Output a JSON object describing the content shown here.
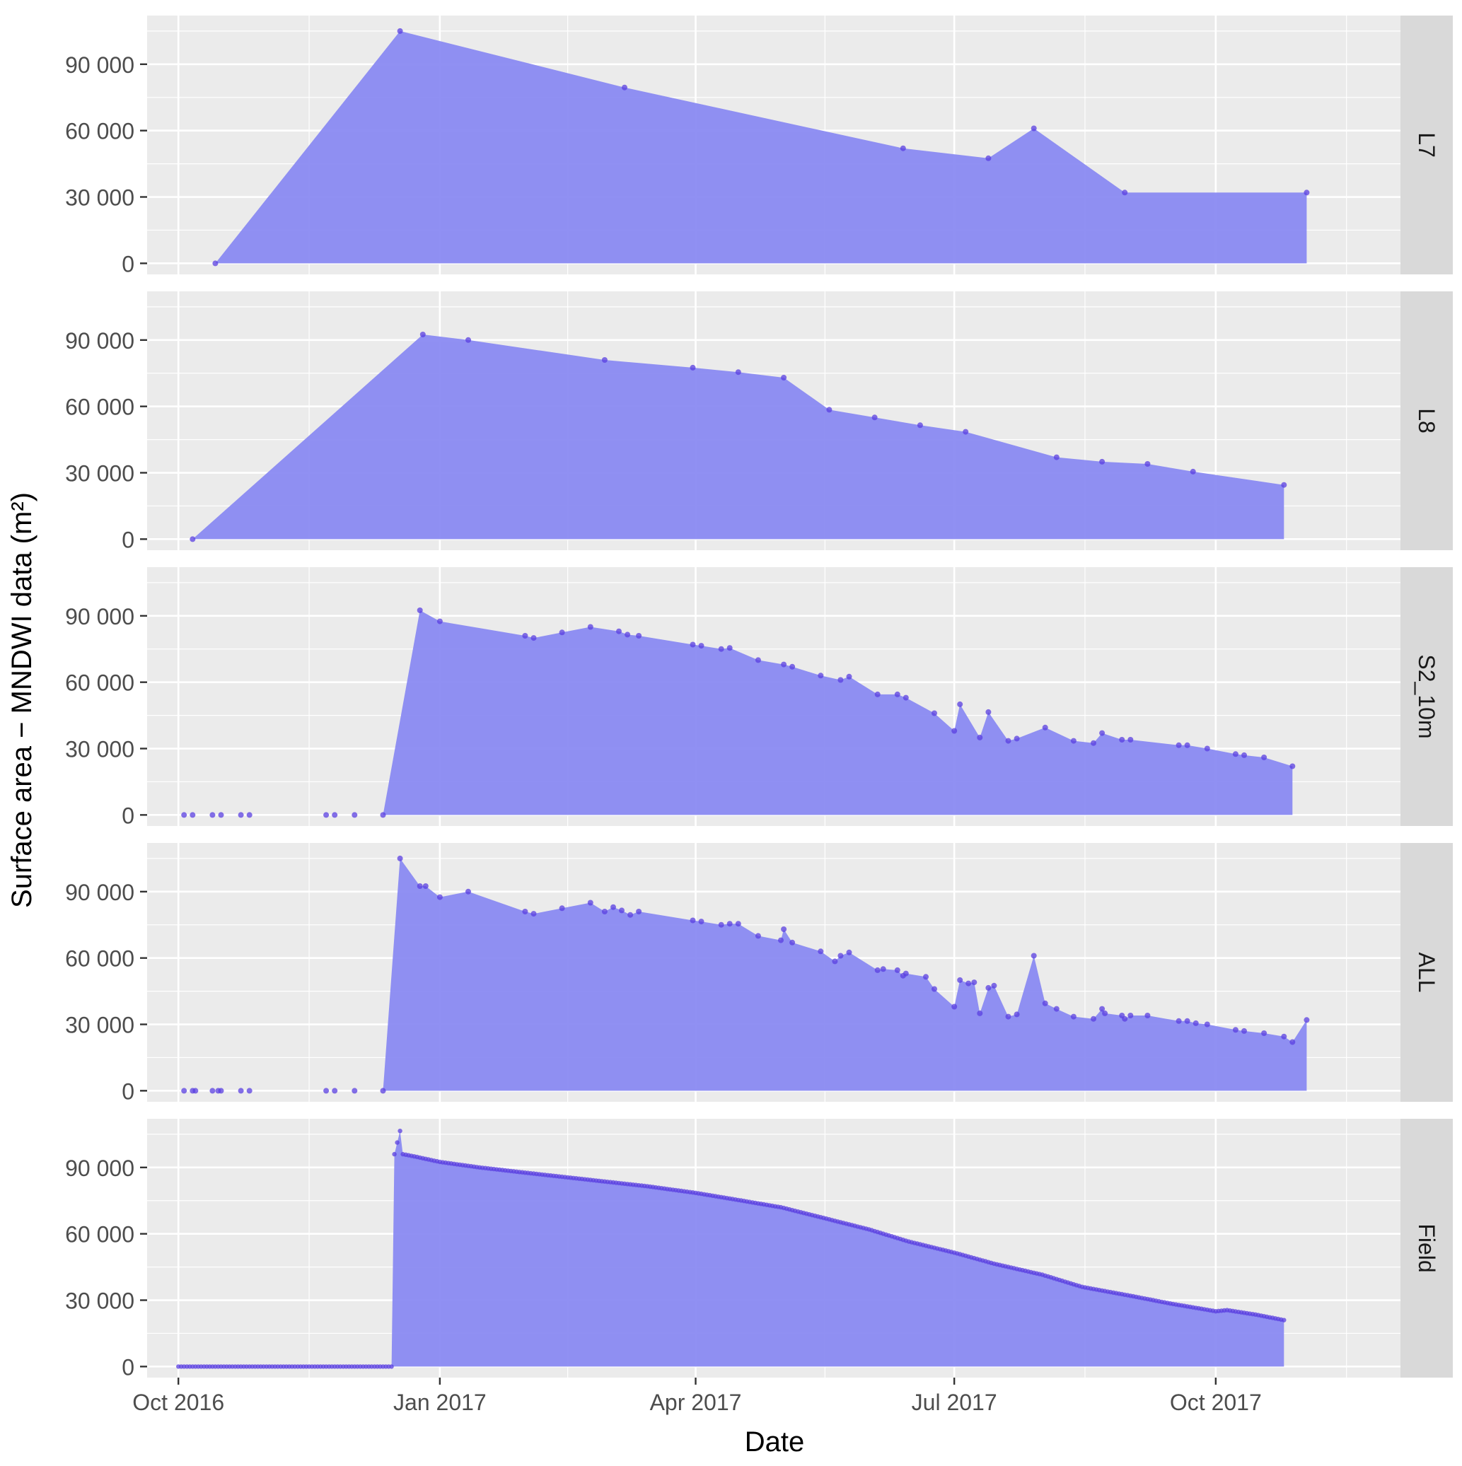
{
  "chart_data": {
    "type": "area",
    "xlabel": "Date",
    "ylabel": "Surface area − MNDWI data (m²)",
    "x_ticks": [
      "Oct 2016",
      "Jan 2017",
      "Apr 2017",
      "Jul 2017",
      "Oct 2017"
    ],
    "y_ticks": [
      "0",
      "30 000",
      "60 000",
      "90 000"
    ],
    "xlim": [
      "2016-09-20",
      "2017-12-05"
    ],
    "ylim": [
      -5000,
      112000
    ],
    "grid": true,
    "colors": {
      "fill": "#8a8af2",
      "point": "#5a3fe0",
      "panel_bg": "#ebebeb",
      "grid": "#ffffff",
      "strip_bg": "#d9d9d9"
    },
    "panels": [
      {
        "name": "L7",
        "points": [
          [
            "2016-10-14",
            0
          ],
          [
            "2016-12-18",
            105000
          ],
          [
            "2017-03-07",
            79500
          ],
          [
            "2017-06-13",
            52000
          ],
          [
            "2017-07-13",
            47500
          ],
          [
            "2017-07-29",
            61000
          ],
          [
            "2017-08-30",
            32000
          ],
          [
            "2017-11-02",
            32000
          ]
        ]
      },
      {
        "name": "L8",
        "points": [
          [
            "2016-10-06",
            0
          ],
          [
            "2016-12-26",
            92500
          ],
          [
            "2017-01-11",
            90000
          ],
          [
            "2017-02-28",
            81000
          ],
          [
            "2017-03-31",
            77500
          ],
          [
            "2017-04-16",
            75500
          ],
          [
            "2017-05-02",
            73000
          ],
          [
            "2017-05-18",
            58500
          ],
          [
            "2017-06-03",
            55000
          ],
          [
            "2017-06-19",
            51500
          ],
          [
            "2017-07-05",
            48500
          ],
          [
            "2017-08-06",
            37000
          ],
          [
            "2017-08-22",
            35000
          ],
          [
            "2017-09-07",
            34000
          ],
          [
            "2017-09-23",
            30500
          ],
          [
            "2017-10-25",
            24500
          ]
        ]
      },
      {
        "name": "S2_10m",
        "points": [
          [
            "2016-10-03",
            0
          ],
          [
            "2016-10-06",
            0
          ],
          [
            "2016-10-13",
            0
          ],
          [
            "2016-10-16",
            0
          ],
          [
            "2016-10-23",
            0
          ],
          [
            "2016-10-26",
            0
          ],
          [
            "2016-11-22",
            0
          ],
          [
            "2016-11-25",
            0
          ],
          [
            "2016-12-02",
            0
          ],
          [
            "2016-12-12",
            0
          ],
          [
            "2016-12-25",
            92500
          ],
          [
            "2017-01-01",
            87500
          ],
          [
            "2017-01-31",
            81000
          ],
          [
            "2017-02-03",
            80000
          ],
          [
            "2017-02-13",
            82500
          ],
          [
            "2017-02-23",
            85000
          ],
          [
            "2017-03-05",
            83000
          ],
          [
            "2017-03-08",
            81500
          ],
          [
            "2017-03-12",
            81000
          ],
          [
            "2017-03-31",
            77000
          ],
          [
            "2017-04-03",
            76500
          ],
          [
            "2017-04-10",
            75000
          ],
          [
            "2017-04-13",
            75500
          ],
          [
            "2017-04-23",
            70000
          ],
          [
            "2017-05-02",
            68000
          ],
          [
            "2017-05-05",
            67000
          ],
          [
            "2017-05-15",
            63000
          ],
          [
            "2017-05-22",
            61000
          ],
          [
            "2017-05-25",
            62500
          ],
          [
            "2017-06-04",
            54500
          ],
          [
            "2017-06-11",
            54500
          ],
          [
            "2017-06-14",
            53000
          ],
          [
            "2017-06-24",
            46000
          ],
          [
            "2017-07-01",
            38000
          ],
          [
            "2017-07-03",
            50000
          ],
          [
            "2017-07-10",
            35000
          ],
          [
            "2017-07-13",
            46500
          ],
          [
            "2017-07-20",
            33500
          ],
          [
            "2017-07-23",
            34500
          ],
          [
            "2017-08-02",
            39500
          ],
          [
            "2017-08-12",
            33500
          ],
          [
            "2017-08-19",
            32500
          ],
          [
            "2017-08-22",
            37000
          ],
          [
            "2017-08-29",
            34000
          ],
          [
            "2017-09-01",
            34000
          ],
          [
            "2017-09-18",
            31500
          ],
          [
            "2017-09-21",
            31500
          ],
          [
            "2017-09-28",
            30000
          ],
          [
            "2017-10-08",
            27500
          ],
          [
            "2017-10-11",
            27000
          ],
          [
            "2017-10-18",
            26000
          ],
          [
            "2017-10-28",
            22000
          ]
        ]
      },
      {
        "name": "ALL",
        "points": [
          [
            "2016-10-03",
            0
          ],
          [
            "2016-10-06",
            0
          ],
          [
            "2016-10-07",
            0
          ],
          [
            "2016-10-13",
            0
          ],
          [
            "2016-10-15",
            0
          ],
          [
            "2016-10-16",
            0
          ],
          [
            "2016-10-23",
            0
          ],
          [
            "2016-10-26",
            0
          ],
          [
            "2016-11-22",
            0
          ],
          [
            "2016-11-25",
            0
          ],
          [
            "2016-12-02",
            0
          ],
          [
            "2016-12-12",
            0
          ],
          [
            "2016-12-18",
            105000
          ],
          [
            "2016-12-25",
            92500
          ],
          [
            "2016-12-27",
            92500
          ],
          [
            "2017-01-01",
            87500
          ],
          [
            "2017-01-11",
            90000
          ],
          [
            "2017-01-31",
            81000
          ],
          [
            "2017-02-03",
            80000
          ],
          [
            "2017-02-13",
            82500
          ],
          [
            "2017-02-23",
            85000
          ],
          [
            "2017-02-28",
            81000
          ],
          [
            "2017-03-03",
            83000
          ],
          [
            "2017-03-06",
            81500
          ],
          [
            "2017-03-09",
            79500
          ],
          [
            "2017-03-12",
            81000
          ],
          [
            "2017-03-31",
            77000
          ],
          [
            "2017-04-03",
            76500
          ],
          [
            "2017-04-10",
            75000
          ],
          [
            "2017-04-13",
            75500
          ],
          [
            "2017-04-16",
            75500
          ],
          [
            "2017-04-23",
            70000
          ],
          [
            "2017-05-01",
            68000
          ],
          [
            "2017-05-02",
            73000
          ],
          [
            "2017-05-05",
            67000
          ],
          [
            "2017-05-15",
            63000
          ],
          [
            "2017-05-20",
            58500
          ],
          [
            "2017-05-22",
            61000
          ],
          [
            "2017-05-25",
            62500
          ],
          [
            "2017-06-04",
            54500
          ],
          [
            "2017-06-06",
            55000
          ],
          [
            "2017-06-11",
            54500
          ],
          [
            "2017-06-13",
            52000
          ],
          [
            "2017-06-14",
            53000
          ],
          [
            "2017-06-21",
            51500
          ],
          [
            "2017-06-24",
            46000
          ],
          [
            "2017-07-01",
            38000
          ],
          [
            "2017-07-03",
            50000
          ],
          [
            "2017-07-06",
            48500
          ],
          [
            "2017-07-08",
            49000
          ],
          [
            "2017-07-10",
            35000
          ],
          [
            "2017-07-13",
            46500
          ],
          [
            "2017-07-15",
            47500
          ],
          [
            "2017-07-20",
            33500
          ],
          [
            "2017-07-23",
            34500
          ],
          [
            "2017-07-29",
            61000
          ],
          [
            "2017-08-02",
            39500
          ],
          [
            "2017-08-06",
            37000
          ],
          [
            "2017-08-12",
            33500
          ],
          [
            "2017-08-19",
            32500
          ],
          [
            "2017-08-22",
            37000
          ],
          [
            "2017-08-23",
            35000
          ],
          [
            "2017-08-29",
            34000
          ],
          [
            "2017-08-30",
            32500
          ],
          [
            "2017-09-01",
            34000
          ],
          [
            "2017-09-07",
            34000
          ],
          [
            "2017-09-18",
            31500
          ],
          [
            "2017-09-21",
            31500
          ],
          [
            "2017-09-24",
            30500
          ],
          [
            "2017-09-28",
            30000
          ],
          [
            "2017-10-08",
            27500
          ],
          [
            "2017-10-11",
            27000
          ],
          [
            "2017-10-18",
            26000
          ],
          [
            "2017-10-25",
            24500
          ],
          [
            "2017-10-28",
            22000
          ],
          [
            "2017-11-02",
            32000
          ]
        ]
      },
      {
        "name": "Field",
        "points": [
          [
            "2016-10-01",
            0
          ],
          [
            "2016-12-15",
            0
          ],
          [
            "2016-12-16",
            96000
          ],
          [
            "2016-12-18",
            106500
          ],
          [
            "2016-12-19",
            96000
          ],
          [
            "2016-12-23",
            95000
          ],
          [
            "2017-01-01",
            92500
          ],
          [
            "2017-01-15",
            90000
          ],
          [
            "2017-02-01",
            87500
          ],
          [
            "2017-02-15",
            85500
          ],
          [
            "2017-03-01",
            83500
          ],
          [
            "2017-03-15",
            81500
          ],
          [
            "2017-04-01",
            78500
          ],
          [
            "2017-04-15",
            75500
          ],
          [
            "2017-05-01",
            72000
          ],
          [
            "2017-05-15",
            67500
          ],
          [
            "2017-06-01",
            62000
          ],
          [
            "2017-06-15",
            56500
          ],
          [
            "2017-07-01",
            51500
          ],
          [
            "2017-07-15",
            46500
          ],
          [
            "2017-08-01",
            41500
          ],
          [
            "2017-08-15",
            36000
          ],
          [
            "2017-09-01",
            32000
          ],
          [
            "2017-09-15",
            28500
          ],
          [
            "2017-10-01",
            25000
          ],
          [
            "2017-10-05",
            25500
          ],
          [
            "2017-10-15",
            23500
          ],
          [
            "2017-10-25",
            21000
          ]
        ],
        "series_step_days": 1
      }
    ]
  }
}
